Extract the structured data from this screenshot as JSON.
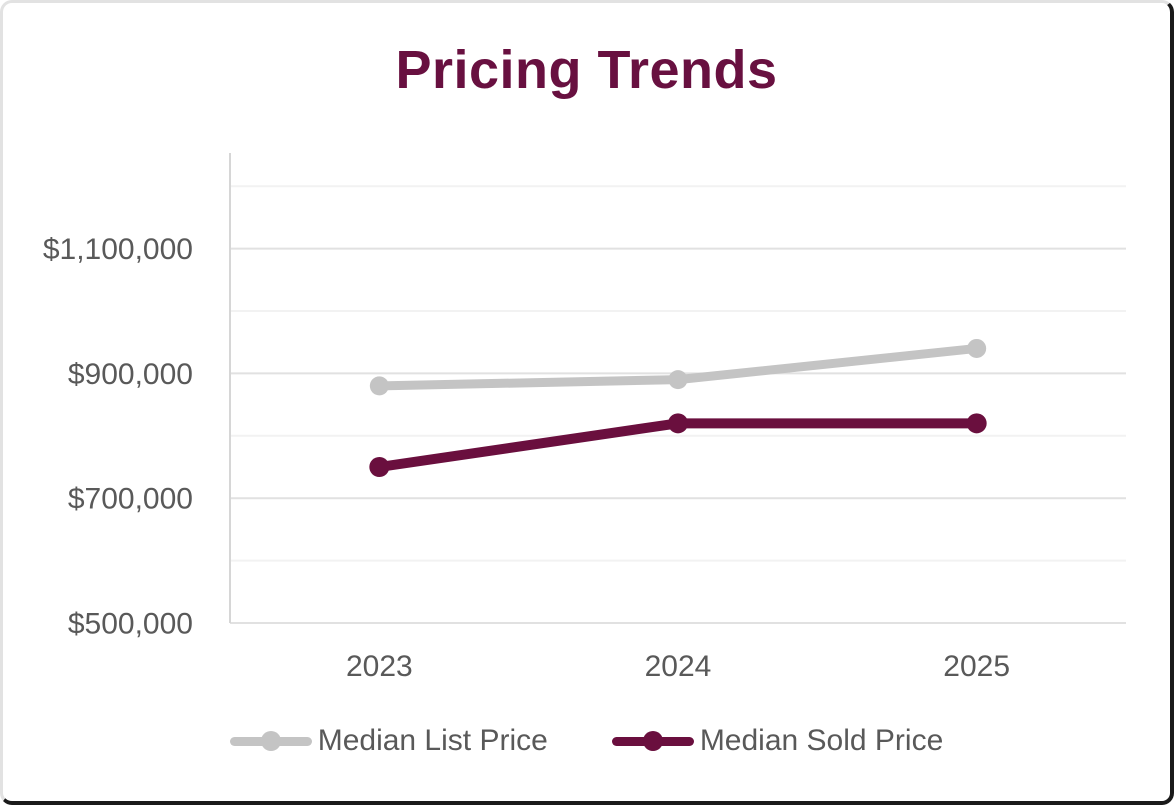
{
  "chart_data": {
    "type": "line",
    "title": "Pricing Trends",
    "categories": [
      "2023",
      "2024",
      "2025"
    ],
    "series": [
      {
        "name": "Median List Price",
        "color": "#c4c4c4",
        "values": [
          880000,
          890000,
          940000
        ]
      },
      {
        "name": "Median Sold Price",
        "color": "#6a0f3e",
        "values": [
          750000,
          820000,
          820000
        ]
      }
    ],
    "y_axis": {
      "min": 500000,
      "max": 1200000,
      "gridline_step": 100000,
      "labeled_ticks": [
        {
          "value": 500000,
          "label": "$500,000"
        },
        {
          "value": 700000,
          "label": "$700,000"
        },
        {
          "value": 900000,
          "label": "$900,000"
        },
        {
          "value": 1100000,
          "label": "$1,100,000"
        }
      ]
    },
    "legend_position": "bottom",
    "grid": "horizontal"
  },
  "colors": {
    "title": "#681040",
    "axis_text": "#595959",
    "axis_line": "#d6d6d6",
    "grid_major": "#e1e1e1",
    "grid_minor": "#f2f2f2"
  }
}
